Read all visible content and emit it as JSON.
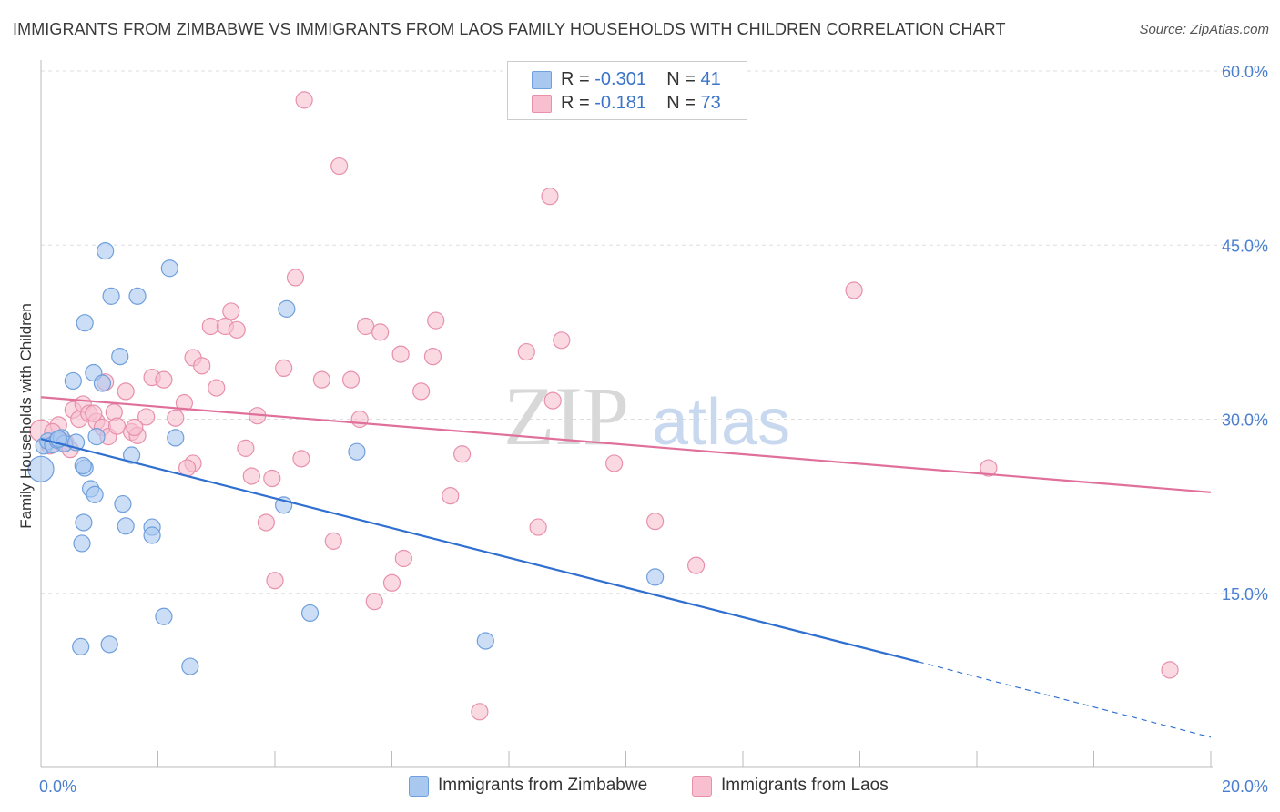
{
  "title": "IMMIGRANTS FROM ZIMBABWE VS IMMIGRANTS FROM LAOS FAMILY HOUSEHOLDS WITH CHILDREN CORRELATION CHART",
  "source": "Source: ZipAtlas.com",
  "watermark": {
    "zip": "ZIP",
    "atlas": "atlas"
  },
  "legend": {
    "r_label": "R =",
    "n_label": "N =",
    "series1": {
      "r": "-0.301",
      "n": "41"
    },
    "series2": {
      "r": "-0.181",
      "n": "73"
    }
  },
  "bottom_legend": {
    "series1": "Immigrants from Zimbabwe",
    "series2": "Immigrants from Laos"
  },
  "colors": {
    "series1_fill": "#a9c8f0",
    "series1_stroke": "#6f9fdc",
    "series1_line": "#2f6fd0",
    "series2_fill": "#f7bfd0",
    "series2_stroke": "#e890ab",
    "series2_line": "#e0709a",
    "tick": "#4a7fd0",
    "grid": "#dddddd"
  },
  "chart_data": {
    "type": "scatter",
    "ylabel": "Family Households with Children",
    "xlim": [
      0,
      20
    ],
    "ylim": [
      0,
      60
    ],
    "x_tick_labels": [
      "0.0%",
      "20.0%"
    ],
    "y_ticks": [
      15,
      30,
      45,
      60
    ],
    "y_tick_labels": [
      "15.0%",
      "30.0%",
      "45.0%",
      "60.0%"
    ],
    "grid": true,
    "series": [
      {
        "name": "Immigrants from Zimbabwe",
        "points": [
          [
            0.05,
            27.7
          ],
          [
            0.12,
            28.1
          ],
          [
            0.2,
            27.8
          ],
          [
            0.28,
            28.2
          ],
          [
            0.35,
            28.4
          ],
          [
            0.4,
            27.9
          ],
          [
            0.55,
            33.3
          ],
          [
            0.6,
            28.0
          ],
          [
            0.75,
            38.3
          ],
          [
            0.85,
            24.0
          ],
          [
            0.9,
            34.0
          ],
          [
            0.95,
            28.5
          ],
          [
            1.05,
            33.1
          ],
          [
            1.1,
            44.5
          ],
          [
            1.2,
            40.6
          ],
          [
            1.35,
            35.4
          ],
          [
            1.4,
            22.7
          ],
          [
            1.55,
            26.9
          ],
          [
            1.65,
            40.6
          ],
          [
            1.9,
            20.7
          ],
          [
            2.2,
            43.0
          ],
          [
            2.3,
            28.4
          ],
          [
            0.7,
            19.3
          ],
          [
            0.75,
            25.8
          ],
          [
            0.92,
            23.5
          ],
          [
            1.45,
            20.8
          ],
          [
            0.72,
            26.0
          ],
          [
            1.9,
            20.0
          ],
          [
            0.73,
            21.1
          ],
          [
            0.68,
            10.4
          ],
          [
            1.17,
            10.6
          ],
          [
            2.1,
            13.0
          ],
          [
            2.55,
            8.7
          ],
          [
            4.15,
            22.6
          ],
          [
            4.2,
            39.5
          ],
          [
            4.6,
            13.3
          ],
          [
            5.4,
            27.2
          ],
          [
            7.6,
            10.9
          ],
          [
            10.5,
            16.4
          ],
          [
            0.3,
            28.3
          ],
          [
            0.0,
            25.7
          ]
        ]
      },
      {
        "name": "Immigrants from Laos",
        "points": [
          [
            0.0,
            29.0
          ],
          [
            0.15,
            27.7
          ],
          [
            0.3,
            29.5
          ],
          [
            0.42,
            28.0
          ],
          [
            0.55,
            30.8
          ],
          [
            0.65,
            30.0
          ],
          [
            0.72,
            31.3
          ],
          [
            0.82,
            30.5
          ],
          [
            0.95,
            29.8
          ],
          [
            1.05,
            29.3
          ],
          [
            1.15,
            28.5
          ],
          [
            1.25,
            30.6
          ],
          [
            1.3,
            29.4
          ],
          [
            1.45,
            32.4
          ],
          [
            1.55,
            28.9
          ],
          [
            1.65,
            28.6
          ],
          [
            1.8,
            30.2
          ],
          [
            1.9,
            33.6
          ],
          [
            2.1,
            33.4
          ],
          [
            2.3,
            30.1
          ],
          [
            2.45,
            31.4
          ],
          [
            2.6,
            35.3
          ],
          [
            2.75,
            34.6
          ],
          [
            2.9,
            38.0
          ],
          [
            3.0,
            32.7
          ],
          [
            3.15,
            38.0
          ],
          [
            3.25,
            39.3
          ],
          [
            3.35,
            37.7
          ],
          [
            3.5,
            27.5
          ],
          [
            3.6,
            25.1
          ],
          [
            3.7,
            30.3
          ],
          [
            3.85,
            21.1
          ],
          [
            3.95,
            24.9
          ],
          [
            4.0,
            16.1
          ],
          [
            4.15,
            34.4
          ],
          [
            4.35,
            42.2
          ],
          [
            4.45,
            26.6
          ],
          [
            4.5,
            57.5
          ],
          [
            4.8,
            33.4
          ],
          [
            5.0,
            19.5
          ],
          [
            5.1,
            51.8
          ],
          [
            5.3,
            33.4
          ],
          [
            5.45,
            30.0
          ],
          [
            5.55,
            38.0
          ],
          [
            5.7,
            14.3
          ],
          [
            5.8,
            37.5
          ],
          [
            6.0,
            15.9
          ],
          [
            6.15,
            35.6
          ],
          [
            6.2,
            18.0
          ],
          [
            6.5,
            32.4
          ],
          [
            6.7,
            35.4
          ],
          [
            6.75,
            38.5
          ],
          [
            7.0,
            23.4
          ],
          [
            7.2,
            27.0
          ],
          [
            7.5,
            4.8
          ],
          [
            8.3,
            35.8
          ],
          [
            8.5,
            20.7
          ],
          [
            8.7,
            49.2
          ],
          [
            8.75,
            31.6
          ],
          [
            8.9,
            36.8
          ],
          [
            9.8,
            26.2
          ],
          [
            10.5,
            21.2
          ],
          [
            11.2,
            17.4
          ],
          [
            13.9,
            41.1
          ],
          [
            16.2,
            25.8
          ],
          [
            19.3,
            8.4
          ],
          [
            2.6,
            26.2
          ],
          [
            2.5,
            25.8
          ],
          [
            1.6,
            29.3
          ],
          [
            0.9,
            30.5
          ],
          [
            1.1,
            33.2
          ],
          [
            0.5,
            27.4
          ],
          [
            0.2,
            28.9
          ]
        ]
      }
    ],
    "trendlines": [
      {
        "series": "Immigrants from Zimbabwe",
        "x": [
          0,
          15
        ],
        "y": [
          28.3,
          9.1
        ],
        "dashed_extension_to": [
          20,
          2.6
        ]
      },
      {
        "series": "Immigrants from Laos",
        "x": [
          0,
          20
        ],
        "y": [
          31.9,
          23.7
        ]
      }
    ]
  }
}
